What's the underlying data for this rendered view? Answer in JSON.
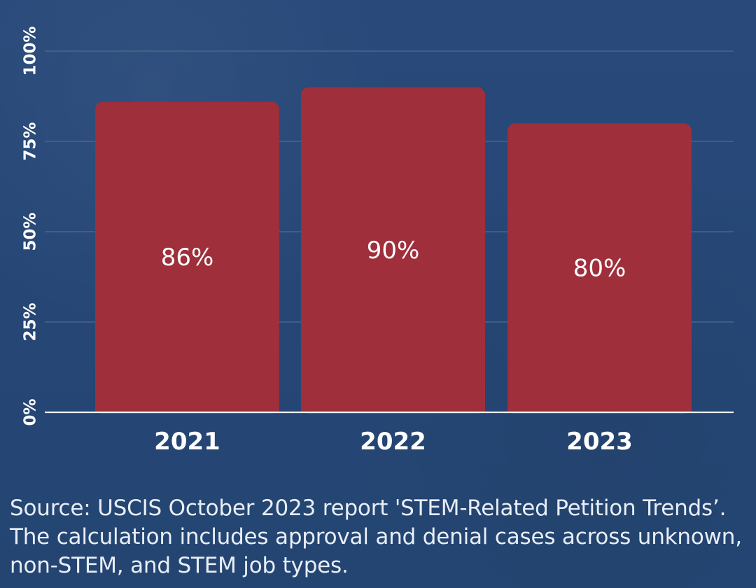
{
  "chart_data": {
    "type": "bar",
    "categories": [
      "2021",
      "2022",
      "2023"
    ],
    "values": [
      86,
      90,
      80
    ],
    "value_labels": [
      "86%",
      "90%",
      "80%"
    ],
    "ylim": [
      0,
      100
    ],
    "yticks": [
      0,
      25,
      50,
      75,
      100
    ],
    "ytick_labels": [
      "0%",
      "25%",
      "50%",
      "75%",
      "100%"
    ],
    "grid": true,
    "title": "",
    "xlabel": "",
    "ylabel": ""
  },
  "footer": {
    "source": "Source: USCIS October 2023 report 'STEM-Related Petition Trends’. The calculation includes approval and denial cases across unknown, non-STEM, and STEM job types."
  },
  "colors": {
    "background": "#24466f",
    "bar": "#9e2f3b",
    "grid": "#5d7597",
    "axis": "#f2f4f8",
    "text": "#ffffff"
  }
}
